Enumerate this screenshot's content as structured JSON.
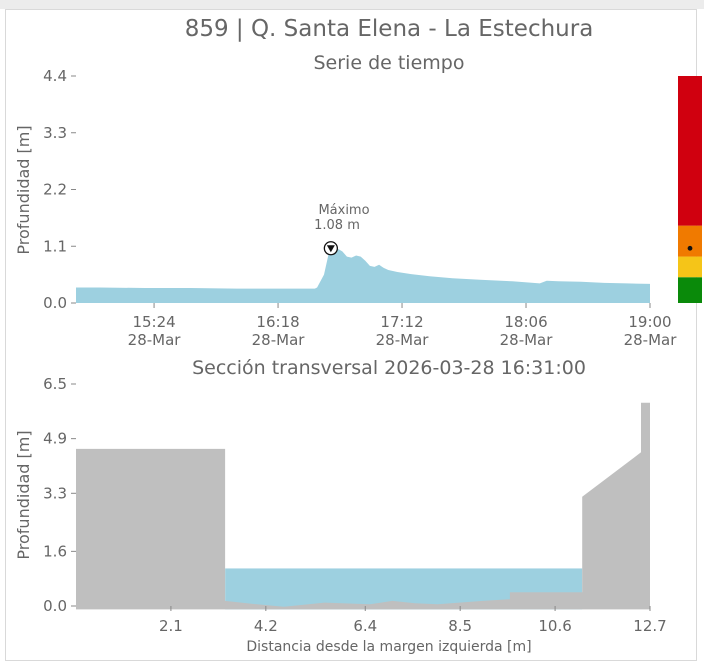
{
  "title": "859 | Q. Santa Elena - La Estechura",
  "colors": {
    "water": "#9dd0e0",
    "terrain": "#bfbfbf",
    "axis": "#888888",
    "text": "#666666",
    "level_red": "#d0000f",
    "level_orange": "#f07a00",
    "level_yellow": "#f5c518",
    "level_green": "#0a8a0a"
  },
  "chart_data": [
    {
      "type": "area",
      "title": "Serie de tiempo",
      "ylabel": "Profundidad [m]",
      "xlabel": "",
      "ylim": [
        0,
        4.4
      ],
      "xlim_minutes_of_day": [
        890,
        1140
      ],
      "x_ticks": [
        {
          "time": "15:24",
          "date": "28-Mar",
          "t": 924
        },
        {
          "time": "16:18",
          "date": "28-Mar",
          "t": 978
        },
        {
          "time": "17:12",
          "date": "28-Mar",
          "t": 1032
        },
        {
          "time": "18:06",
          "date": "28-Mar",
          "t": 1086
        },
        {
          "time": "19:00",
          "date": "28-Mar",
          "t": 1140
        }
      ],
      "y_ticks": [
        "0.0",
        "1.1",
        "2.2",
        "3.3",
        "4.4"
      ],
      "y_tick_values": [
        0.0,
        1.1,
        2.2,
        3.3,
        4.4
      ],
      "series": [
        {
          "x_minutes_of_day": [
            890,
            900,
            920,
            940,
            960,
            980,
            994,
            995,
            998,
            1000,
            1002,
            1004,
            1006,
            1008,
            1010,
            1012,
            1014,
            1016,
            1018,
            1020,
            1022,
            1024,
            1026,
            1030,
            1036,
            1044,
            1054,
            1066,
            1080,
            1092,
            1095,
            1100,
            1110,
            1120,
            1130,
            1140
          ],
          "y": [
            0.3,
            0.3,
            0.29,
            0.29,
            0.28,
            0.28,
            0.28,
            0.3,
            0.55,
            0.95,
            1.08,
            1.05,
            1.0,
            0.9,
            0.88,
            0.92,
            0.9,
            0.82,
            0.72,
            0.7,
            0.74,
            0.68,
            0.64,
            0.6,
            0.56,
            0.52,
            0.48,
            0.45,
            0.42,
            0.38,
            0.43,
            0.42,
            0.41,
            0.39,
            0.38,
            0.37
          ]
        }
      ],
      "annotation": {
        "label": "Máximo",
        "value_text": "1.08 m",
        "t": 1001,
        "y": 1.08
      },
      "level_bar": {
        "bands": [
          {
            "from": 0.0,
            "to": 0.5,
            "color": "#0a8a0a"
          },
          {
            "from": 0.5,
            "to": 0.9,
            "color": "#f5c518"
          },
          {
            "from": 0.9,
            "to": 1.5,
            "color": "#f07a00"
          },
          {
            "from": 1.5,
            "to": 4.4,
            "color": "#d0000f"
          }
        ],
        "marker_level": 1.08
      }
    },
    {
      "type": "area",
      "title": "Sección transversal 2026-03-28 16:31:00",
      "xlabel": "Distancia desde la margen izquierda [m]",
      "ylabel": "Profundidad [m]",
      "xlim": [
        0,
        12.7
      ],
      "ylim": [
        0,
        6.5
      ],
      "x_ticks": [
        "2.1",
        "4.2",
        "6.4",
        "8.5",
        "10.6",
        "12.7"
      ],
      "x_tick_values": [
        2.1,
        4.2,
        6.4,
        8.5,
        10.6,
        12.7
      ],
      "y_ticks": [
        "0.0",
        "1.6",
        "3.3",
        "4.9",
        "6.5"
      ],
      "y_tick_values": [
        0.0,
        1.6,
        3.3,
        4.9,
        6.5
      ],
      "water_level": 1.1,
      "terrain": {
        "x": [
          0,
          3.3,
          3.3,
          4.0,
          4.6,
          5.5,
          6.5,
          7.0,
          7.5,
          8.0,
          9.0,
          9.6,
          9.6,
          11.2,
          11.2,
          12.5,
          12.5,
          12.7,
          12.7
        ],
        "y": [
          4.6,
          4.6,
          0.15,
          0.05,
          -0.02,
          0.1,
          0.05,
          0.15,
          0.08,
          0.05,
          0.15,
          0.2,
          0.4,
          0.4,
          3.2,
          4.5,
          5.95,
          5.95,
          0
        ]
      }
    }
  ]
}
